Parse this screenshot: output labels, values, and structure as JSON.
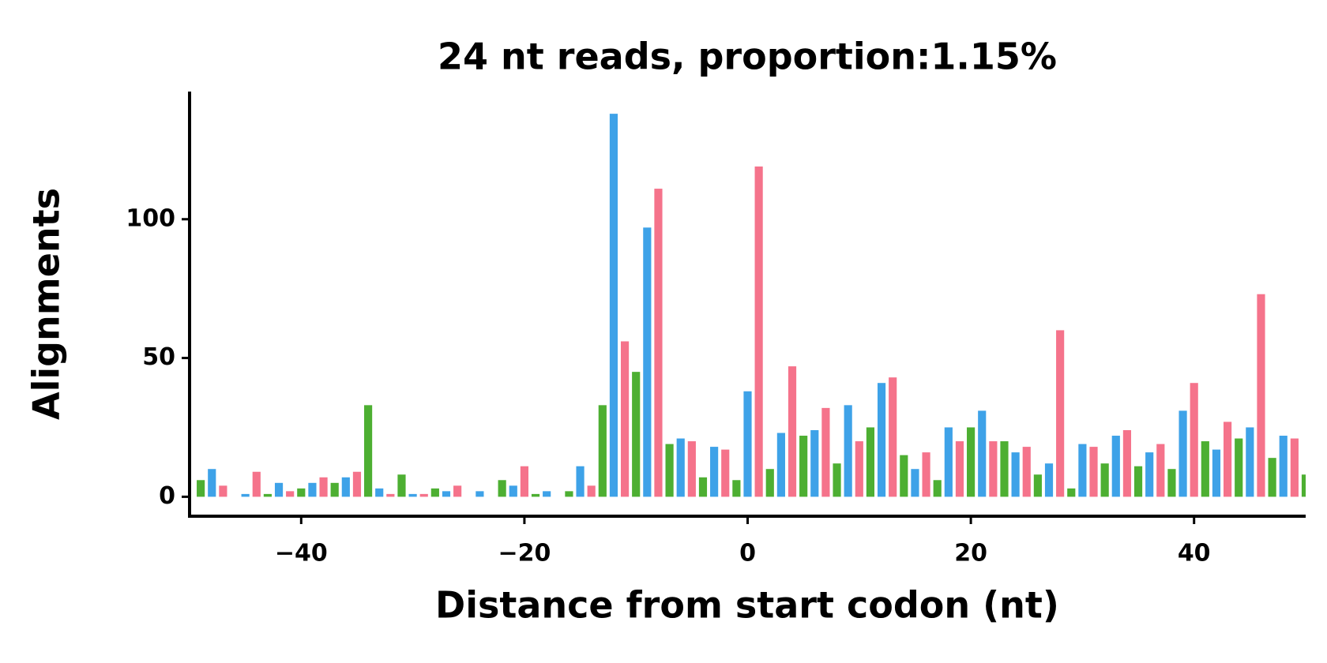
{
  "chart_data": {
    "type": "bar",
    "title": "24 nt reads, proportion:1.15%",
    "x_label": "Distance from start codon (nt)",
    "y_label": "Alignments",
    "xlim": [
      -50,
      50
    ],
    "ylim": [
      -7,
      146
    ],
    "xticks": [
      {
        "value": -40,
        "label": "−40"
      },
      {
        "value": -20,
        "label": "−20"
      },
      0,
      20,
      40
    ],
    "yticks": [
      0,
      50,
      100
    ],
    "series": [
      {
        "color": "#4daf32",
        "x": [
          -49,
          -46,
          -43,
          -40,
          -37,
          -34,
          -31,
          -28,
          -25,
          -22,
          -19,
          -16,
          -13,
          -10,
          -7,
          -4,
          -1,
          2,
          5,
          8,
          11,
          14,
          17,
          20,
          23,
          26,
          29,
          32,
          35,
          38,
          41,
          44,
          47,
          50
        ],
        "values": [
          6,
          0,
          1,
          3,
          5,
          33,
          8,
          3,
          0,
          6,
          1,
          2,
          33,
          45,
          19,
          7,
          6,
          10,
          22,
          12,
          25,
          15,
          6,
          25,
          20,
          8,
          3,
          12,
          11,
          10,
          20,
          21,
          14,
          8
        ]
      },
      {
        "color": "#3ea2e8",
        "x": [
          -48,
          -45,
          -42,
          -39,
          -36,
          -33,
          -30,
          -27,
          -24,
          -21,
          -18,
          -15,
          -12,
          -9,
          -6,
          -3,
          0,
          3,
          6,
          9,
          12,
          15,
          18,
          21,
          24,
          27,
          30,
          33,
          36,
          39,
          42,
          45,
          48
        ],
        "values": [
          10,
          1,
          5,
          5,
          7,
          3,
          1,
          2,
          2,
          4,
          2,
          11,
          138,
          97,
          21,
          18,
          38,
          23,
          24,
          33,
          41,
          10,
          25,
          31,
          16,
          12,
          19,
          22,
          16,
          31,
          17,
          25,
          22
        ]
      },
      {
        "color": "#f5738b",
        "x": [
          -47,
          -44,
          -41,
          -38,
          -35,
          -32,
          -29,
          -26,
          -23,
          -20,
          -17,
          -14,
          -11,
          -8,
          -5,
          -2,
          1,
          4,
          7,
          10,
          13,
          16,
          19,
          22,
          25,
          28,
          31,
          34,
          37,
          40,
          43,
          46,
          49
        ],
        "values": [
          4,
          9,
          2,
          7,
          9,
          1,
          1,
          4,
          0,
          11,
          0,
          4,
          56,
          111,
          20,
          17,
          119,
          47,
          32,
          20,
          43,
          16,
          20,
          20,
          18,
          60,
          18,
          24,
          19,
          41,
          27,
          73,
          21
        ]
      }
    ]
  }
}
